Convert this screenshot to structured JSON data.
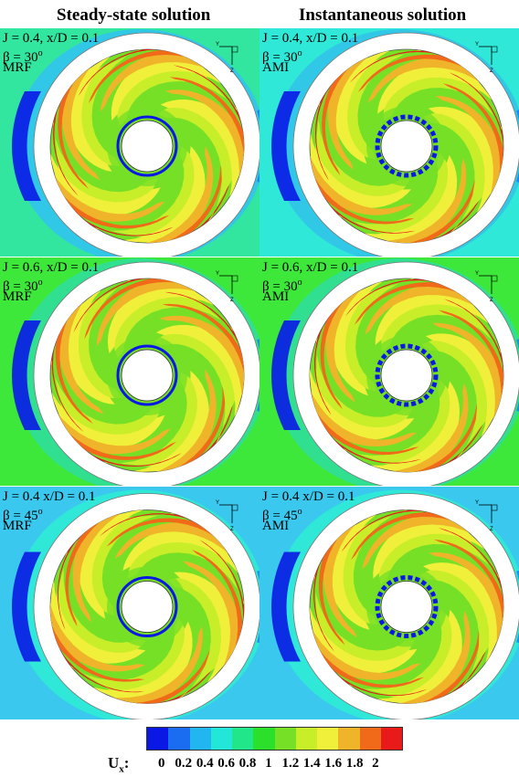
{
  "titles": {
    "left": "Steady-state solution",
    "right": "Instantaneous solution"
  },
  "panels": [
    {
      "line1": "J = 0.4, x/D = 0.1",
      "beta": "β = 30",
      "deg": "o",
      "method": "MRF",
      "bg": "#32e6a0",
      "shade": "#30c8e6"
    },
    {
      "line1": "J = 0.4, x/D = 0.1",
      "beta": "β = 30",
      "deg": "o",
      "method": "AMI",
      "bg": "#2fe8d8",
      "shade": "#30c8e6"
    },
    {
      "line1": "J = 0.6, x/D = 0.1",
      "beta": "β = 30",
      "deg": "o",
      "method": "MRF",
      "bg": "#3ee83a",
      "shade": "#30e090"
    },
    {
      "line1": "J = 0.6, x/D = 0.1",
      "beta": "β = 30",
      "deg": "o",
      "method": "AMI",
      "bg": "#3ee83a",
      "shade": "#30e090"
    },
    {
      "line1": "J = 0.4 x/D = 0.1",
      "beta": "β = 45",
      "deg": "o",
      "method": "MRF",
      "bg": "#3ac8ee",
      "shade": "#2fe8d8"
    },
    {
      "line1": "J = 0.4 x/D = 0.1",
      "beta": "β = 45",
      "deg": "o",
      "method": "AMI",
      "bg": "#3ac8ee",
      "shade": "#2fe8d8"
    }
  ],
  "axis_labels": {
    "y": "Y",
    "z": "Z"
  },
  "colorbar": {
    "colors": [
      "#0a18e6",
      "#1a6cf0",
      "#22b6f0",
      "#22e6d8",
      "#22e68a",
      "#2be02b",
      "#76e026",
      "#c8ee2a",
      "#f0f03a",
      "#f0b42a",
      "#f06a1a",
      "#e81a1a"
    ],
    "ticks": [
      "0",
      "0.2",
      "0.4",
      "0.6",
      "0.8",
      "1",
      "1.2",
      "1.4",
      "1.6",
      "1.8",
      "2"
    ],
    "label": "U",
    "label_sub": "x",
    "label_suffix": ":"
  }
}
